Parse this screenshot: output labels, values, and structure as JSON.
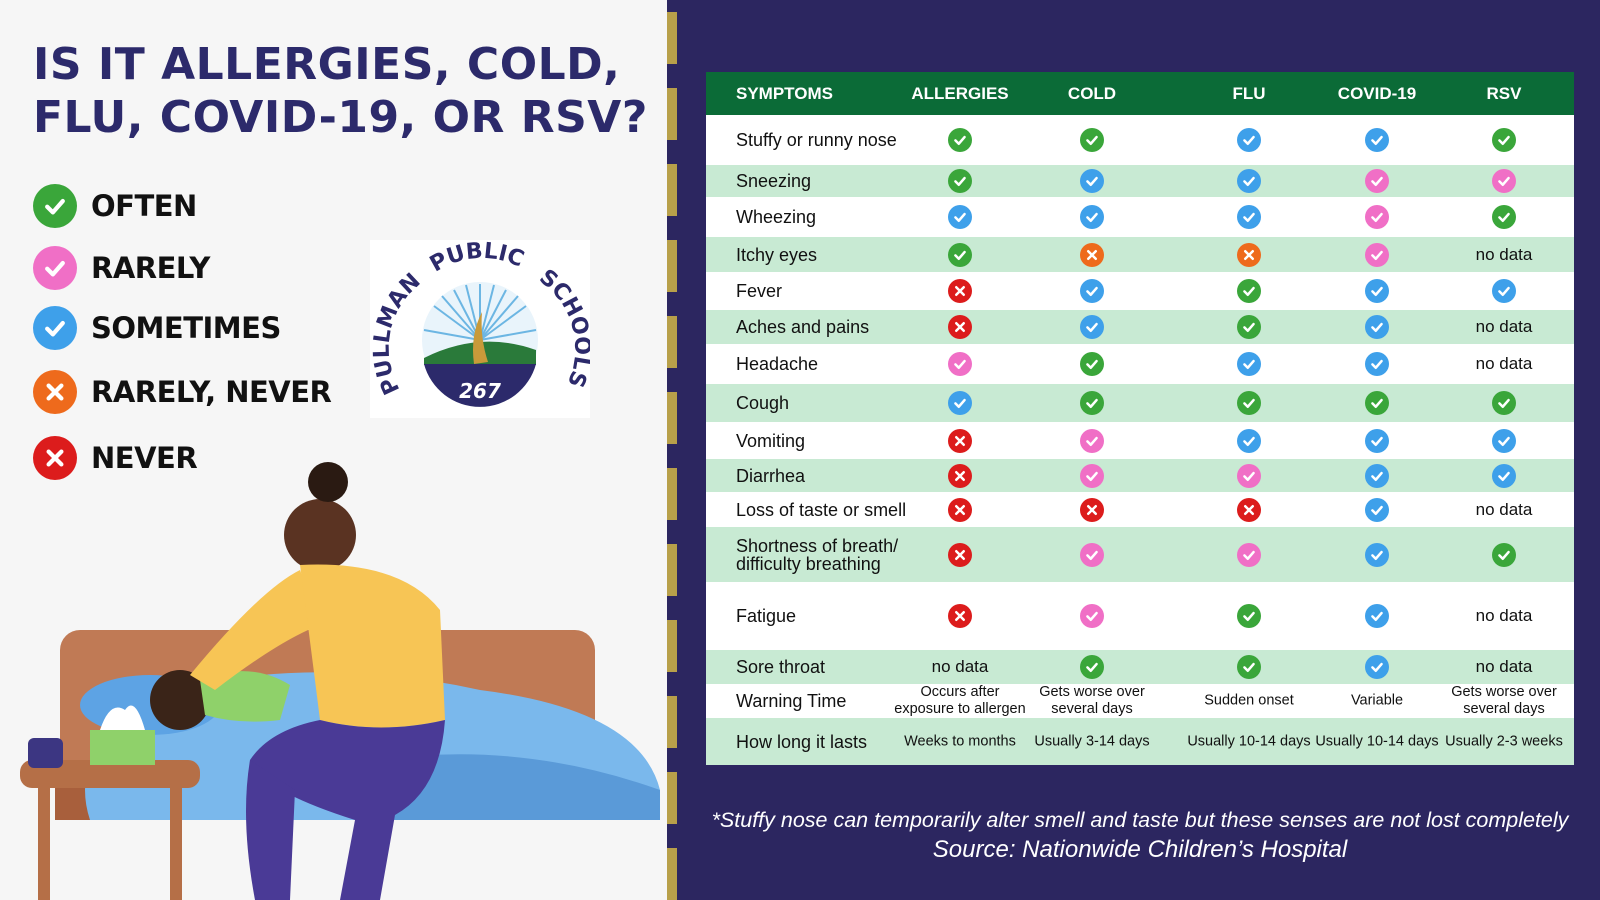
{
  "title_line1": "IS IT ALLERGIES, COLD,",
  "title_line2": "FLU, COVID-19, OR RSV?",
  "legend": [
    {
      "label": "OFTEN",
      "icon": "check-icon",
      "color": "#3aa63a"
    },
    {
      "label": "RARELY",
      "icon": "check-icon",
      "color": "#f06fc6"
    },
    {
      "label": "SOMETIMES",
      "icon": "check-icon",
      "color": "#3ea0ea"
    },
    {
      "label": "RARELY, NEVER",
      "icon": "x-icon",
      "color": "#ee6a1c"
    },
    {
      "label": "NEVER",
      "icon": "x-icon",
      "color": "#dc1c1c"
    }
  ],
  "logo": {
    "text_left": "PULLMAN",
    "text_top": "PUBLIC",
    "text_right": "SCHOOLS",
    "number": "267"
  },
  "table": {
    "headers": [
      "SYMPTOMS",
      "ALLERGIES",
      "COLD",
      "FLU",
      "COVID-19",
      "RSV"
    ],
    "rows": [
      {
        "symptom": "Stuffy or runny nose",
        "cells": [
          "g",
          "g",
          "b",
          "b",
          "g"
        ]
      },
      {
        "symptom": "Sneezing",
        "cells": [
          "g",
          "b",
          "b",
          "p",
          "p"
        ]
      },
      {
        "symptom": "Wheezing",
        "cells": [
          "b",
          "b",
          "b",
          "p",
          "g"
        ]
      },
      {
        "symptom": "Itchy eyes",
        "cells": [
          "g",
          "o",
          "o",
          "p",
          "no data"
        ]
      },
      {
        "symptom": "Fever",
        "cells": [
          "r",
          "b",
          "g",
          "b",
          "b"
        ]
      },
      {
        "symptom": "Aches and pains",
        "cells": [
          "r",
          "b",
          "g",
          "b",
          "no data"
        ]
      },
      {
        "symptom": "Headache",
        "cells": [
          "p",
          "g",
          "b",
          "b",
          "no data"
        ]
      },
      {
        "symptom": "Cough",
        "cells": [
          "b",
          "g",
          "g",
          "g",
          "g"
        ]
      },
      {
        "symptom": "Vomiting",
        "cells": [
          "r",
          "p",
          "b",
          "b",
          "b"
        ]
      },
      {
        "symptom": "Diarrhea",
        "cells": [
          "r",
          "p",
          "p",
          "b",
          "b"
        ]
      },
      {
        "symptom": "Loss of taste or smell",
        "cells": [
          "r",
          "r",
          "r",
          "b",
          "no data"
        ]
      },
      {
        "symptom": "Shortness of breath/ difficulty breathing",
        "cells": [
          "r",
          "p",
          "p",
          "b",
          "g"
        ]
      },
      {
        "symptom": "Fatigue",
        "cells": [
          "r",
          "p",
          "g",
          "b",
          "no data"
        ]
      },
      {
        "symptom": "Sore throat",
        "cells": [
          "no data",
          "g",
          "g",
          "b",
          "no data"
        ]
      },
      {
        "symptom": "Warning Time",
        "cells": [
          "Occurs after exposure to allergen",
          "Gets worse over several days",
          "Sudden onset",
          "Variable",
          "Gets worse over several days"
        ]
      },
      {
        "symptom": "How long it lasts",
        "cells": [
          "Weeks to months",
          "Usually 3-14 days",
          "Usually 10-14 days",
          "Usually 10-14 days",
          "Usually 2-3 weeks"
        ]
      }
    ]
  },
  "footnote": "*Stuffy nose can temporarily alter smell and taste but these senses are not lost completely",
  "source": "Source: Nationwide Children’s Hospital"
}
